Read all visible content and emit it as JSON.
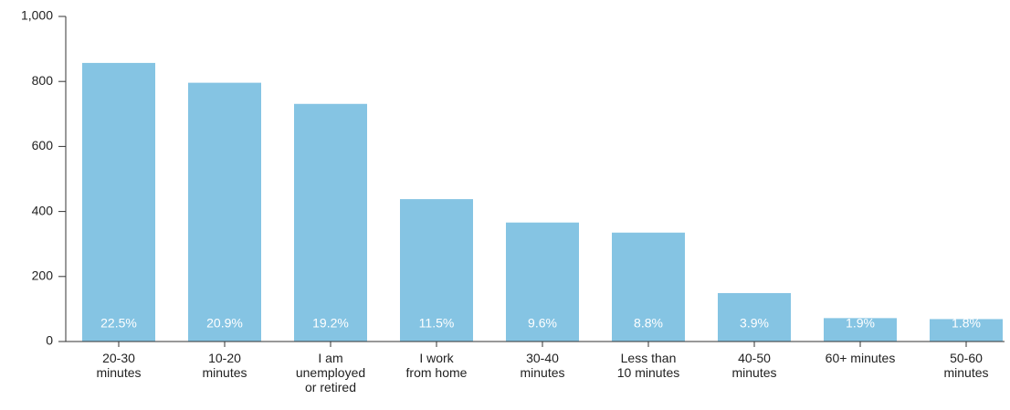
{
  "chart_data": {
    "type": "bar",
    "categories": [
      "20-30\nminutes",
      "10-20\nminutes",
      "I am\nunemployed\nor retired",
      "I work\nfrom home",
      "30-40\nminutes",
      "Less than\n10 minutes",
      "40-50\nminutes",
      "60+ minutes",
      "50-60\nminutes"
    ],
    "values": [
      857,
      796,
      731,
      438,
      366,
      335,
      149,
      72,
      69
    ],
    "shares": [
      "22.5%",
      "20.9%",
      "19.2%",
      "11.5%",
      "9.6%",
      "8.8%",
      "3.9%",
      "1.9%",
      "1.8%"
    ],
    "color": "#85c4e3",
    "ylim": [
      0,
      1000
    ],
    "yticks": [
      0,
      200,
      400,
      600,
      800,
      {
        "value": 1000,
        "label": "1,000"
      }
    ],
    "grid": false
  }
}
